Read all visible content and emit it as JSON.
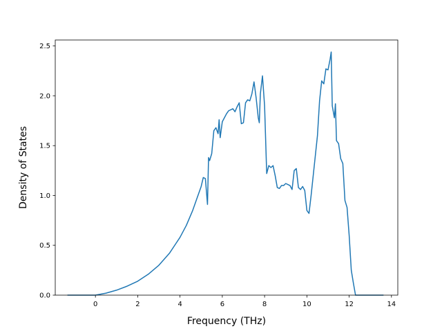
{
  "chart_data": {
    "type": "line",
    "xlabel": "Frequency (THz)",
    "ylabel": "Density of States",
    "xlim": [
      -1.9,
      14.3
    ],
    "ylim": [
      0,
      2.56
    ],
    "grid": false,
    "line_color": "#1f77b4",
    "x_ticks": [
      0,
      2,
      4,
      6,
      8,
      10,
      12,
      14
    ],
    "y_ticks": [
      0.0,
      0.5,
      1.0,
      1.5,
      2.0,
      2.5
    ],
    "x_tick_labels": [
      "0",
      "2",
      "4",
      "6",
      "8",
      "10",
      "12",
      "14"
    ],
    "y_tick_labels": [
      "0.0",
      "0.5",
      "1.0",
      "1.5",
      "2.0",
      "2.5"
    ],
    "series": [
      {
        "x": [
          -1.3,
          -0.5,
          0,
          0.5,
          1,
          1.5,
          2,
          2.5,
          3,
          3.5,
          4,
          4.3,
          4.6,
          4.8,
          5.0,
          5.1,
          5.2,
          5.3,
          5.35,
          5.4,
          5.5,
          5.6,
          5.7,
          5.8,
          5.85,
          5.9,
          6.0,
          6.1,
          6.2,
          6.3,
          6.5,
          6.6,
          6.7,
          6.8,
          6.9,
          7.0,
          7.1,
          7.2,
          7.3,
          7.4,
          7.5,
          7.6,
          7.7,
          7.75,
          7.8,
          7.9,
          8.0,
          8.1,
          8.2,
          8.3,
          8.4,
          8.5,
          8.6,
          8.7,
          8.8,
          8.9,
          9.0,
          9.1,
          9.2,
          9.3,
          9.4,
          9.5,
          9.6,
          9.7,
          9.8,
          9.9,
          10.0,
          10.1,
          10.2,
          10.3,
          10.4,
          10.5,
          10.6,
          10.7,
          10.8,
          10.9,
          11.0,
          11.1,
          11.15,
          11.2,
          11.3,
          11.35,
          11.4,
          11.5,
          11.6,
          11.7,
          11.8,
          11.9,
          12.0,
          12.1,
          12.2,
          12.3,
          12.4,
          13.0,
          13.6
        ],
        "y": [
          0.0,
          0.0,
          0.0,
          0.02,
          0.05,
          0.09,
          0.14,
          0.21,
          0.3,
          0.42,
          0.58,
          0.7,
          0.85,
          0.97,
          1.09,
          1.18,
          1.17,
          0.91,
          1.38,
          1.35,
          1.42,
          1.65,
          1.68,
          1.62,
          1.76,
          1.58,
          1.74,
          1.78,
          1.82,
          1.85,
          1.87,
          1.84,
          1.89,
          1.93,
          1.72,
          1.73,
          1.93,
          1.96,
          1.95,
          2.02,
          2.14,
          1.98,
          1.78,
          1.73,
          2.02,
          2.2,
          1.9,
          1.22,
          1.3,
          1.28,
          1.3,
          1.2,
          1.08,
          1.07,
          1.1,
          1.1,
          1.12,
          1.11,
          1.1,
          1.06,
          1.25,
          1.27,
          1.08,
          1.06,
          1.09,
          1.05,
          0.85,
          0.82,
          1.0,
          1.2,
          1.4,
          1.6,
          1.95,
          2.15,
          2.12,
          2.27,
          2.26,
          2.37,
          2.44,
          1.9,
          1.78,
          1.92,
          1.55,
          1.52,
          1.37,
          1.32,
          0.95,
          0.88,
          0.6,
          0.25,
          0.12,
          0.0,
          0.0,
          0.0,
          0.0
        ]
      }
    ]
  }
}
